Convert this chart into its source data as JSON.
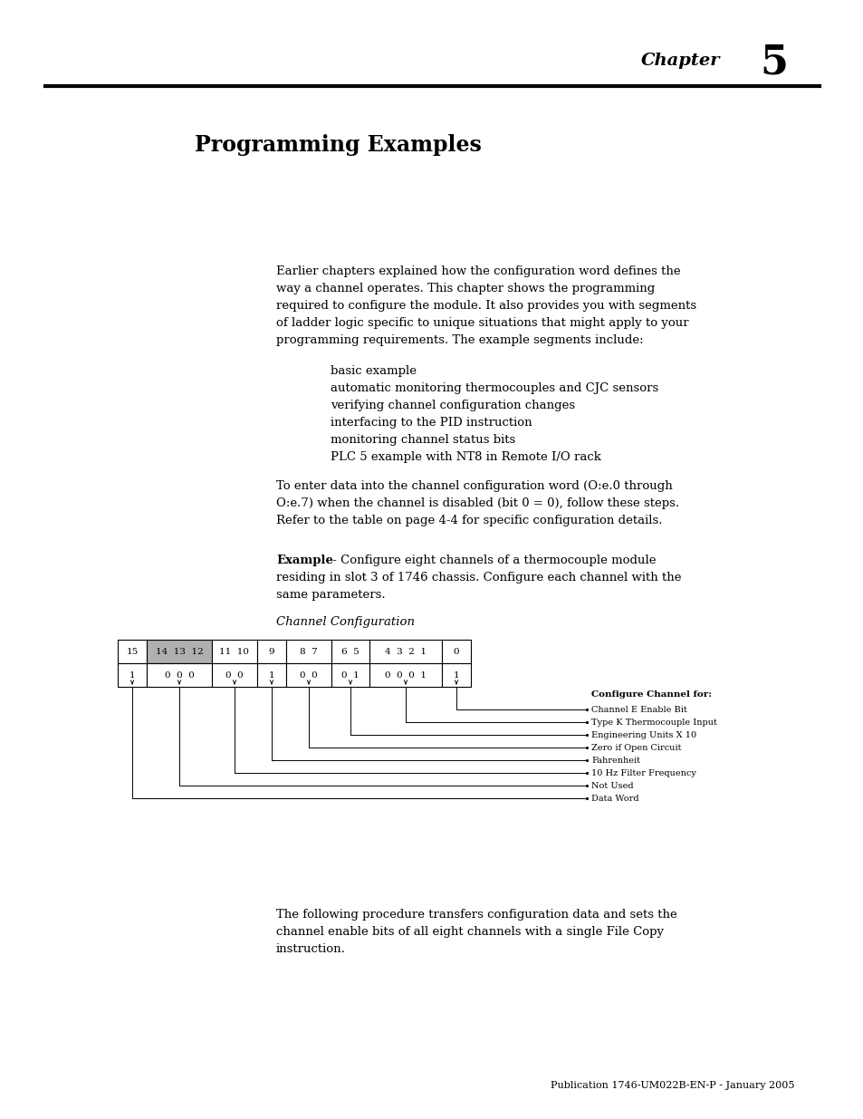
{
  "title_chapter": "Chapter",
  "title_number": "5",
  "title_section": "Programming Examples",
  "body_text_lines": [
    "Earlier chapters explained how the configuration word defines the",
    "way a channel operates. This chapter shows the programming",
    "required to configure the module. It also provides you with segments",
    "of ladder logic specific to unique situations that might apply to your",
    "programming requirements. The example segments include:"
  ],
  "bullets": [
    "basic example",
    "automatic monitoring thermocouples and CJC sensors",
    "verifying channel configuration changes",
    "interfacing to the PID instruction",
    "monitoring channel status bits",
    "PLC 5 example with NT8 in Remote I/O rack"
  ],
  "para2_lines": [
    "To enter data into the channel configuration word (O:e.0 through",
    "O:e.7) when the channel is disabled (bit 0 = 0), follow these steps.",
    "Refer to the table on page 4-4 for specific configuration details."
  ],
  "example_bold": "Example",
  "example_rest_lines": [
    " - Configure eight channels of a thermocouple module",
    "residing in slot 3 of 1746 chassis. Configure each channel with the",
    "same parameters."
  ],
  "channel_config_label": "Channel Configuration",
  "configure_header": "Configure Channel for:",
  "configure_items": [
    "Channel E Enable Bit",
    "Type K Thermocouple Input",
    "Engineering Units X 10",
    "Zero if Open Circuit",
    "Fahrenheit",
    "10 Hz Filter Frequency",
    "Not Used",
    "Data Word"
  ],
  "footer_text_lines": [
    "The following procedure transfers configuration data and sets the",
    "channel enable bits of all eight channels with a single File Copy",
    "instruction."
  ],
  "publication": "Publication 1746-UM022B-EN-P - January 2005",
  "bg_color": "#ffffff",
  "text_color": "#000000",
  "gray_fill": "#b0b0b0"
}
